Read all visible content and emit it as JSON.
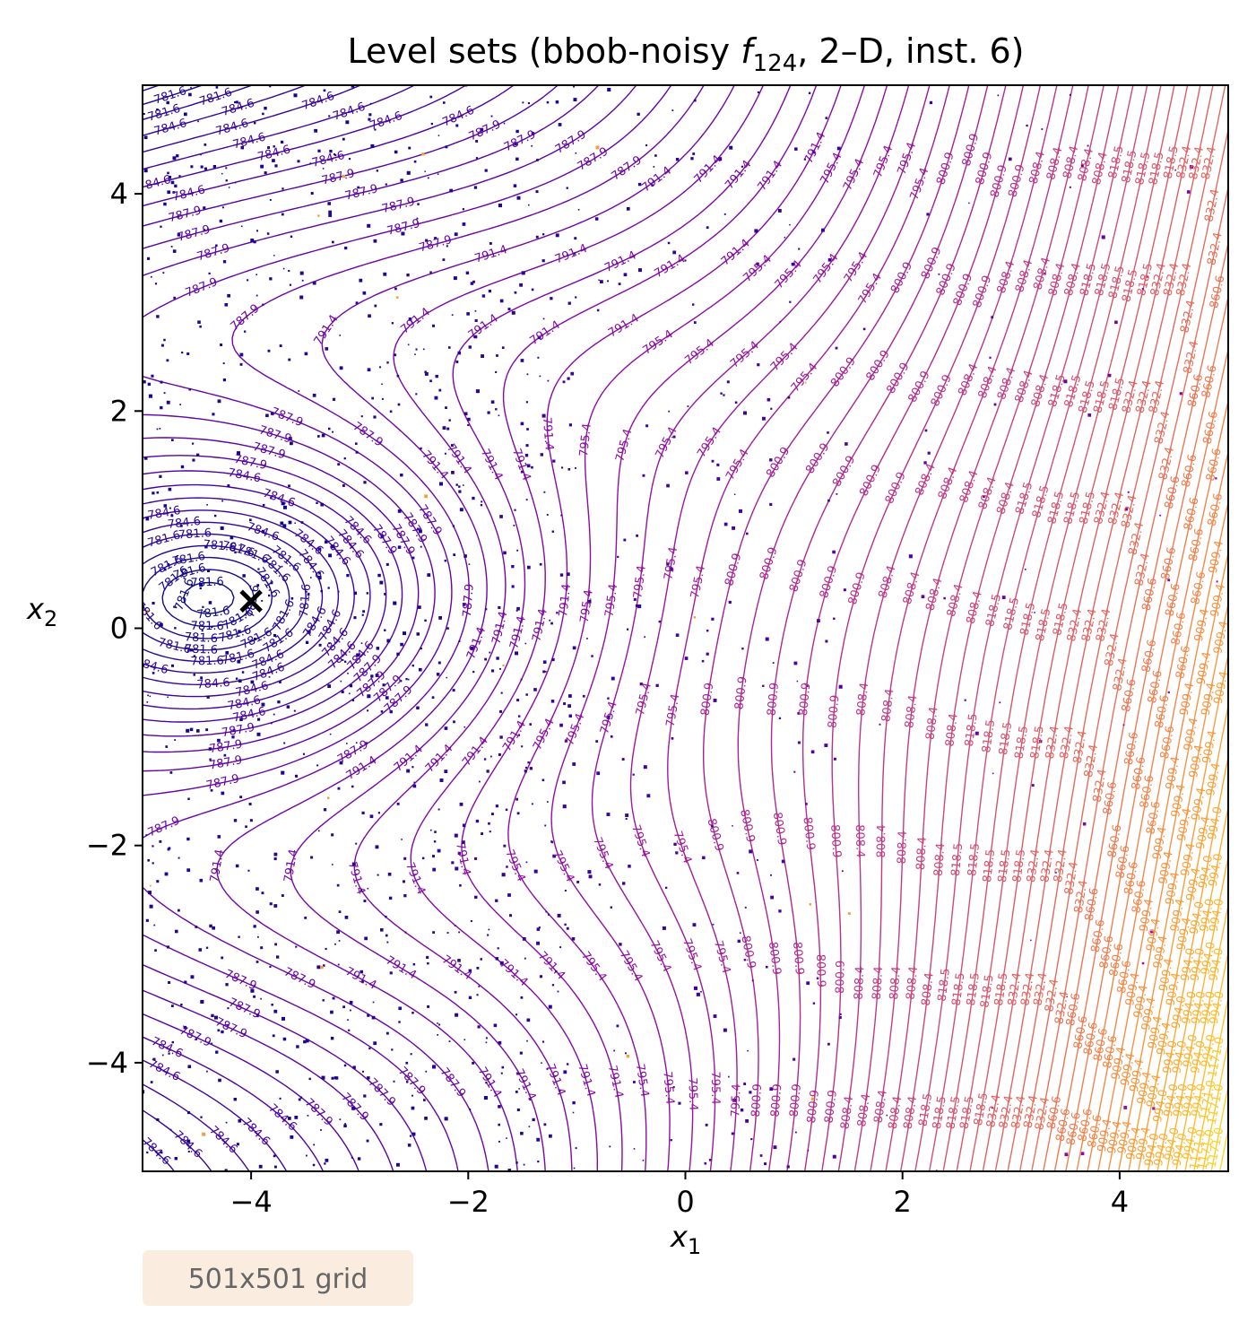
{
  "chart_data": {
    "type": "contour",
    "title": "Level sets (bbob-noisy f_124, 2–D, inst. 6)",
    "title_parts": {
      "prefix": "Level sets (bbob-noisy ",
      "symbol": "f",
      "subscript": "124",
      "suffix": ", 2–D, inst. 6)"
    },
    "xlabel": {
      "symbol": "x",
      "subscript": "1"
    },
    "ylabel": {
      "symbol": "x",
      "subscript": "2"
    },
    "xlim": [
      -5,
      5
    ],
    "ylim": [
      -5,
      5
    ],
    "xticks": [
      -4,
      -2,
      0,
      2,
      4
    ],
    "yticks": [
      -4,
      -2,
      0,
      2,
      4
    ],
    "xtick_labels": [
      "−4",
      "−2",
      "0",
      "2",
      "4"
    ],
    "ytick_labels": [
      "−4",
      "−2",
      "0",
      "2",
      "4"
    ],
    "colormap": "plasma",
    "levels": [
      781.6,
      784.6,
      787.9,
      791.4,
      795.4,
      800.9,
      808.4,
      818.5,
      832.4,
      860.6,
      909.4,
      994.0,
      1171.0
    ],
    "labeled_levels": [
      "781.6",
      "784.6",
      "787.9",
      "791.4",
      "795.4",
      "800.9",
      "808.4",
      "818.5",
      "832.4",
      "860.6",
      "909.4",
      "994.0",
      "1171.0"
    ],
    "optimum": {
      "x": -4.0,
      "y": 0.25,
      "marker": "x"
    },
    "grid": false,
    "annotation": "501x501 grid",
    "annotation_color": "#faede0"
  }
}
